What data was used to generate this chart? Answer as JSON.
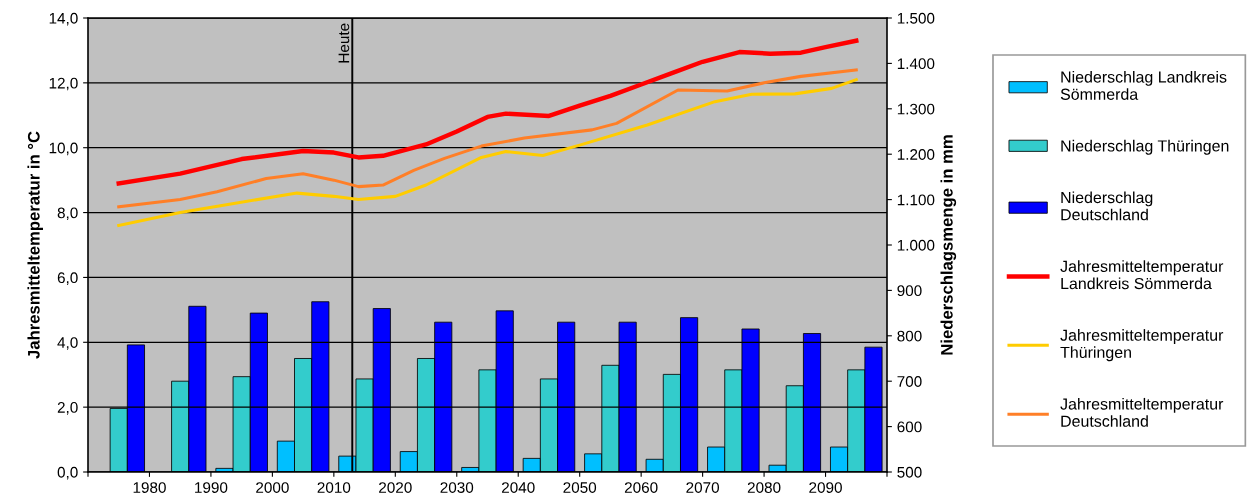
{
  "chart_data": {
    "type": "bar",
    "ylabel": "Jahresmitteltemperatur in °C",
    "y2label": "Niederschlagsmenge in mm",
    "x": [
      1975,
      1985,
      1995,
      2005,
      2015,
      2025,
      2035,
      2045,
      2055,
      2065,
      2075,
      2085,
      2095
    ],
    "xlim": [
      1970,
      2100
    ],
    "xticks": [
      {
        "value": 1970,
        "label": null
      },
      1980,
      1990,
      2000,
      2010,
      2020,
      2030,
      2040,
      2050,
      2060,
      2070,
      2080,
      2090,
      {
        "value": 2100,
        "label": null
      }
    ],
    "ylim": [
      0,
      14
    ],
    "yticks": [
      {
        "value": 0,
        "label": "0,0"
      },
      {
        "value": 2,
        "label": "2,0"
      },
      {
        "value": 4,
        "label": "4,0"
      },
      {
        "value": 6,
        "label": "6,0"
      },
      {
        "value": 8,
        "label": "8,0"
      },
      {
        "value": 10,
        "label": "10,0"
      },
      {
        "value": 12,
        "label": "12,0"
      },
      {
        "value": 14,
        "label": "14,0"
      }
    ],
    "y2lim": [
      500,
      1500
    ],
    "y2ticks": [
      500,
      600,
      700,
      800,
      900,
      {
        "value": 1000,
        "label": "1.000"
      },
      {
        "value": 1100,
        "label": "1.100"
      },
      {
        "value": 1200,
        "label": "1.200"
      },
      {
        "value": 1300,
        "label": "1.300"
      },
      {
        "value": 1400,
        "label": "1.400"
      },
      {
        "value": 1500,
        "label": "1.500"
      }
    ],
    "grid": "y",
    "legend": "right",
    "ref_lines": [
      {
        "axis": "x",
        "value": 2013,
        "label": "Heute",
        "color": "#000000"
      }
    ],
    "series": [
      {
        "name": "Niederschlag Landkreis Sömmerda",
        "axis": "y2",
        "color": "#00bfff",
        "values": [
          null,
          null,
          508,
          568,
          535,
          545,
          510,
          530,
          540,
          528,
          555,
          515,
          555
        ]
      },
      {
        "name": "Niederschlag Thüringen",
        "axis": "y2",
        "color": "#33cccc",
        "values": [
          640,
          700,
          710,
          750,
          705,
          750,
          725,
          705,
          735,
          715,
          725,
          690,
          725
        ]
      },
      {
        "name": "Niederschlag Deutschland",
        "axis": "y2",
        "color": "#0000ff",
        "values": [
          780,
          865,
          850,
          875,
          860,
          830,
          855,
          830,
          830,
          840,
          815,
          805,
          775
        ]
      },
      {
        "name": "Jahresmitteltemperatur Landkreis Sömmerda",
        "type": "line",
        "color": "#ff0000",
        "x": [
          1975,
          1985,
          1995,
          2005,
          2010,
          2014,
          2018,
          2025,
          2030,
          2035,
          2038,
          2045,
          2050,
          2055,
          2060,
          2065,
          2070,
          2076,
          2081,
          2086,
          2090,
          2095
        ],
        "values": [
          8.9,
          9.2,
          9.65,
          9.9,
          9.85,
          9.7,
          9.75,
          10.1,
          10.5,
          10.95,
          11.05,
          10.98,
          11.3,
          11.6,
          11.95,
          12.3,
          12.65,
          12.95,
          12.9,
          12.93,
          13.1,
          13.3
        ]
      },
      {
        "name": "Jahresmitteltemperatur Thüringen",
        "type": "line",
        "color": "#ffcc00",
        "x": [
          1975,
          1985,
          1993,
          2004,
          2010,
          2014,
          2020,
          2025,
          2034,
          2038,
          2044,
          2050,
          2061,
          2072,
          2078,
          2085,
          2091,
          2095
        ],
        "values": [
          7.6,
          8.0,
          8.26,
          8.6,
          8.5,
          8.4,
          8.5,
          8.85,
          9.7,
          9.88,
          9.76,
          10.08,
          10.7,
          11.42,
          11.65,
          11.66,
          11.83,
          12.1
        ]
      },
      {
        "name": "Jahresmitteltemperatur Deutschland",
        "type": "line",
        "color": "#ff7f27",
        "x": [
          1975,
          1985,
          1991,
          1999,
          2005,
          2010,
          2014,
          2018,
          2023,
          2028,
          2034,
          2041,
          2052,
          2056,
          2066,
          2074,
          2080,
          2086,
          2095
        ],
        "values": [
          8.18,
          8.4,
          8.64,
          9.05,
          9.2,
          9.0,
          8.8,
          8.85,
          9.3,
          9.67,
          10.05,
          10.3,
          10.55,
          10.75,
          11.78,
          11.75,
          12.0,
          12.2,
          12.4
        ]
      }
    ]
  }
}
